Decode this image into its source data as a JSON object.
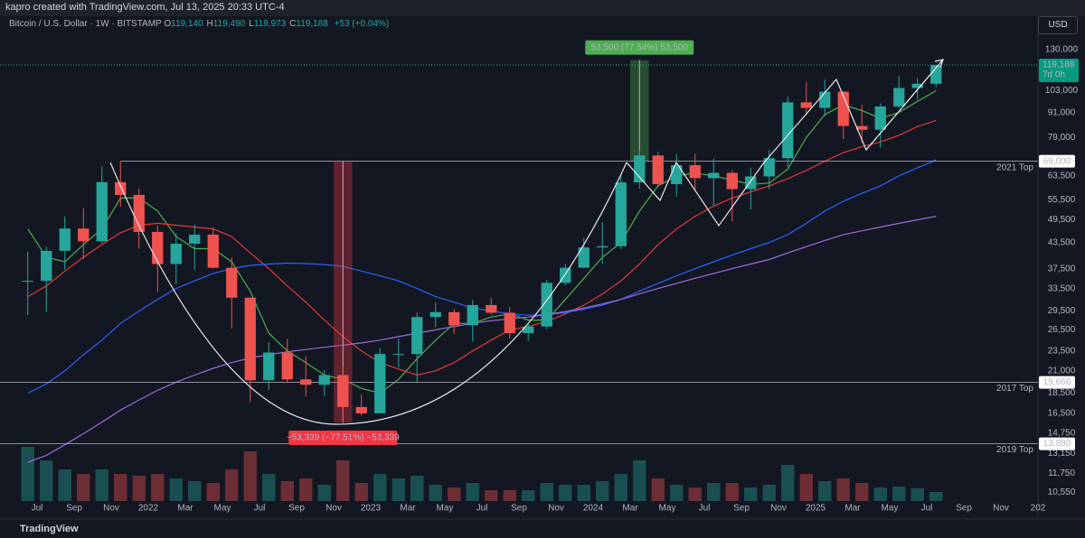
{
  "header": {
    "credit": "kapro created with TradingView.com, Jul 13, 2025 20:33 UTC-4",
    "symbol": "Bitcoin / U.S. Dollar · 1W · BITSTAMP",
    "ohlc": [
      {
        "key": "O",
        "value": "119,140"
      },
      {
        "key": "H",
        "value": "119,490"
      },
      {
        "key": "L",
        "value": "118,973"
      },
      {
        "key": "C",
        "value": "119,188"
      }
    ],
    "change": "+53 (+0.04%)",
    "currency": "USD",
    "brand": "TradingView"
  },
  "chart_data": {
    "type": "candlestick",
    "log_scale": true,
    "grid": false,
    "up_color": "#26a69a",
    "down_color": "#ef5350",
    "x": [
      "2021-06",
      "2021-07",
      "2021-08",
      "2021-09",
      "2021-10",
      "2021-11",
      "2021-12",
      "2022-01",
      "2022-02",
      "2022-03",
      "2022-04",
      "2022-05",
      "2022-06",
      "2022-07",
      "2022-08",
      "2022-09",
      "2022-10",
      "2022-11",
      "2022-12",
      "2023-01",
      "2023-02",
      "2023-03",
      "2023-04",
      "2023-05",
      "2023-06",
      "2023-07",
      "2023-08",
      "2023-09",
      "2023-10",
      "2023-11",
      "2023-12",
      "2024-01",
      "2024-02",
      "2024-03",
      "2024-04",
      "2024-05",
      "2024-06",
      "2024-07",
      "2024-08",
      "2024-09",
      "2024-10",
      "2024-11",
      "2024-12",
      "2025-01",
      "2025-02",
      "2025-03",
      "2025-04",
      "2025-05",
      "2025-06",
      "2025-07"
    ],
    "open": [
      35000,
      35000,
      41500,
      47100,
      43800,
      61300,
      57000,
      46200,
      38500,
      43200,
      45500,
      37700,
      31800,
      19900,
      23300,
      20000,
      19400,
      20500,
      17100,
      16500,
      23100,
      23100,
      28500,
      29300,
      27200,
      30500,
      29200,
      26000,
      27000,
      34600,
      37700,
      42300,
      42600,
      61200,
      71300,
      60600,
      67500,
      62700,
      64600,
      58900,
      63300,
      70200,
      96400,
      93400,
      102400,
      84300,
      82500,
      94200,
      104600,
      107100
    ],
    "high": [
      41300,
      42500,
      50500,
      52900,
      67000,
      69000,
      59100,
      47900,
      45800,
      48200,
      47400,
      40000,
      31900,
      24700,
      25200,
      22800,
      21100,
      21500,
      18400,
      23900,
      25200,
      29200,
      31000,
      29800,
      31400,
      31800,
      30200,
      27500,
      35200,
      38500,
      44700,
      48900,
      64000,
      73800,
      72800,
      71900,
      72000,
      70000,
      65600,
      66500,
      73600,
      99800,
      108300,
      109600,
      102800,
      95000,
      95800,
      112000,
      110600,
      119490
    ],
    "low": [
      28800,
      29300,
      37300,
      39600,
      43300,
      53300,
      42000,
      32900,
      34300,
      37200,
      37600,
      26700,
      17600,
      18800,
      19600,
      18150,
      18200,
      15500,
      16300,
      16500,
      21400,
      19600,
      26900,
      25900,
      24800,
      28900,
      25200,
      24900,
      26600,
      34100,
      37600,
      38500,
      41900,
      59000,
      59600,
      56500,
      58400,
      53500,
      49000,
      52500,
      58900,
      66800,
      90500,
      89200,
      78200,
      76600,
      74500,
      93300,
      98200,
      105100
    ],
    "close": [
      35000,
      41500,
      47100,
      43800,
      61300,
      57000,
      46200,
      38500,
      43200,
      45500,
      37700,
      31800,
      19900,
      23300,
      20000,
      19400,
      20500,
      17100,
      16500,
      23100,
      23100,
      28500,
      29300,
      27200,
      30500,
      29200,
      26000,
      27000,
      34600,
      37700,
      42300,
      42600,
      61200,
      71300,
      60600,
      67500,
      62700,
      64600,
      58900,
      63300,
      70200,
      96400,
      93400,
      102400,
      84300,
      82500,
      94200,
      104600,
      107100,
      119188
    ],
    "volume": [
      60,
      45,
      35,
      30,
      35,
      30,
      28,
      30,
      25,
      22,
      20,
      35,
      55,
      30,
      22,
      25,
      18,
      45,
      20,
      30,
      25,
      28,
      18,
      15,
      20,
      12,
      12,
      12,
      20,
      18,
      18,
      22,
      30,
      45,
      25,
      18,
      15,
      20,
      20,
      15,
      18,
      40,
      30,
      22,
      25,
      20,
      15,
      16,
      14,
      10
    ],
    "volume_lim": [
      0,
      140
    ],
    "indicators": [
      {
        "color": "#4caf50",
        "values": [
          47000,
          40000,
          39000,
          43000,
          47000,
          56000,
          56000,
          52000,
          45000,
          42000,
          42000,
          39000,
          33000,
          26000,
          23500,
          22000,
          20500,
          20000,
          19000,
          18500,
          20000,
          22500,
          25000,
          27500,
          27500,
          28500,
          29000,
          28000,
          28000,
          31500,
          35500,
          40000,
          43500,
          52000,
          60000,
          63500,
          64500,
          63500,
          62000,
          60500,
          61000,
          66000,
          79000,
          90000,
          95000,
          92000,
          88000,
          91000,
          97000,
          103000
        ]
      },
      {
        "color": "#e53935",
        "values": [
          32000,
          34000,
          37000,
          40000,
          43000,
          46000,
          48000,
          48500,
          48000,
          47500,
          47000,
          45000,
          41000,
          37500,
          34000,
          31000,
          28000,
          25500,
          23500,
          22000,
          21200,
          20500,
          21000,
          22000,
          23500,
          25000,
          26500,
          27000,
          27800,
          29000,
          30500,
          32500,
          35000,
          38500,
          43000,
          47000,
          50500,
          53500,
          56000,
          58000,
          60000,
          62500,
          65500,
          69000,
          72500,
          75000,
          77000,
          80000,
          84000,
          87000
        ]
      },
      {
        "color": "#2962ff",
        "values": [
          18500,
          19500,
          21000,
          23000,
          25000,
          27500,
          29500,
          31500,
          33500,
          35000,
          36500,
          37500,
          38200,
          38500,
          38700,
          38600,
          38400,
          38000,
          37000,
          36000,
          35000,
          33500,
          32000,
          31000,
          30000,
          29500,
          29000,
          28800,
          28900,
          29200,
          29800,
          30500,
          31500,
          33000,
          34500,
          36000,
          37500,
          39000,
          40500,
          42000,
          43500,
          45500,
          48500,
          52000,
          55000,
          57500,
          60000,
          63500,
          66500,
          69500
        ]
      },
      {
        "color": "#9c6ade",
        "values": [
          12500,
          13000,
          13800,
          14700,
          15700,
          16800,
          17800,
          18800,
          19700,
          20500,
          21300,
          22000,
          22600,
          23000,
          23400,
          23700,
          24000,
          24300,
          24600,
          25000,
          25500,
          26000,
          26500,
          27000,
          27500,
          27900,
          28200,
          28500,
          28900,
          29400,
          30000,
          30700,
          31500,
          32500,
          33500,
          34500,
          35500,
          36500,
          37500,
          38500,
          39500,
          41000,
          42500,
          44000,
          45500,
          46500,
          47500,
          48500,
          49500,
          50500
        ]
      }
    ],
    "xlim": [
      "2021-05",
      "2026-01"
    ],
    "xticks": [
      {
        "value": "2021-07",
        "label": "Jul"
      },
      {
        "value": "2021-09",
        "label": "Sep"
      },
      {
        "value": "2021-11",
        "label": "Nov"
      },
      {
        "value": "2022-01",
        "label": "2022"
      },
      {
        "value": "2022-03",
        "label": "Mar"
      },
      {
        "value": "2022-05",
        "label": "May"
      },
      {
        "value": "2022-07",
        "label": "Jul"
      },
      {
        "value": "2022-09",
        "label": "Sep"
      },
      {
        "value": "2022-11",
        "label": "Nov"
      },
      {
        "value": "2023-01",
        "label": "2023"
      },
      {
        "value": "2023-03",
        "label": "Mar"
      },
      {
        "value": "2023-05",
        "label": "May"
      },
      {
        "value": "2023-07",
        "label": "Jul"
      },
      {
        "value": "2023-09",
        "label": "Sep"
      },
      {
        "value": "2023-11",
        "label": "Nov"
      },
      {
        "value": "2024-01",
        "label": "2024"
      },
      {
        "value": "2024-03",
        "label": "Mar"
      },
      {
        "value": "2024-05",
        "label": "May"
      },
      {
        "value": "2024-07",
        "label": "Jul"
      },
      {
        "value": "2024-09",
        "label": "Sep"
      },
      {
        "value": "2024-11",
        "label": "Nov"
      },
      {
        "value": "2025-01",
        "label": "2025"
      },
      {
        "value": "2025-03",
        "label": "Mar"
      },
      {
        "value": "2025-05",
        "label": "May"
      },
      {
        "value": "2025-07",
        "label": "Jul"
      },
      {
        "value": "2025-09",
        "label": "Sep"
      },
      {
        "value": "2025-11",
        "label": "Nov"
      },
      {
        "value": "2026-01",
        "label": "202"
      }
    ],
    "ylim": [
      10030,
      140400
    ],
    "yticks": [
      {
        "value": 130000,
        "label": "130,000"
      },
      {
        "value": 103000,
        "label": "103,000"
      },
      {
        "value": 91000,
        "label": "91,000"
      },
      {
        "value": 79000,
        "label": "79,000"
      },
      {
        "value": 63500,
        "label": "63,500"
      },
      {
        "value": 55500,
        "label": "55,500"
      },
      {
        "value": 49500,
        "label": "49,500"
      },
      {
        "value": 43500,
        "label": "43,500"
      },
      {
        "value": 37500,
        "label": "37,500"
      },
      {
        "value": 33500,
        "label": "33,500"
      },
      {
        "value": 29500,
        "label": "29,500"
      },
      {
        "value": 26500,
        "label": "26,500"
      },
      {
        "value": 23500,
        "label": "23,500"
      },
      {
        "value": 21000,
        "label": "21,000"
      },
      {
        "value": 18500,
        "label": "18,500"
      },
      {
        "value": 16500,
        "label": "16,500"
      },
      {
        "value": 14750,
        "label": "14,750"
      },
      {
        "value": 13150,
        "label": "13,150"
      },
      {
        "value": 11750,
        "label": "11,750"
      },
      {
        "value": 10550,
        "label": "10,550"
      }
    ],
    "levels": [
      {
        "value": 69000,
        "label": "69,000",
        "name": "2021 Top",
        "start": "2021-11"
      },
      {
        "value": 19666,
        "label": "19,666",
        "name": "2017 Top"
      },
      {
        "value": 13880,
        "label": "13,880",
        "name": "2019 Top"
      }
    ],
    "last_price": {
      "value": 119188,
      "label": "119,188",
      "countdown": "7d 0h"
    },
    "measurements": [
      {
        "start": "2024-03",
        "end": "2024-04",
        "from": 69000,
        "to": 122500,
        "label": "53,500 (77.54%) 53,500",
        "color": "#4caf50"
      },
      {
        "start": "2022-11",
        "end": "2022-12",
        "from": 69000,
        "to": 15661,
        "label": "−53,339 (−77.51%) −53,339",
        "color": "#f23645"
      }
    ]
  }
}
